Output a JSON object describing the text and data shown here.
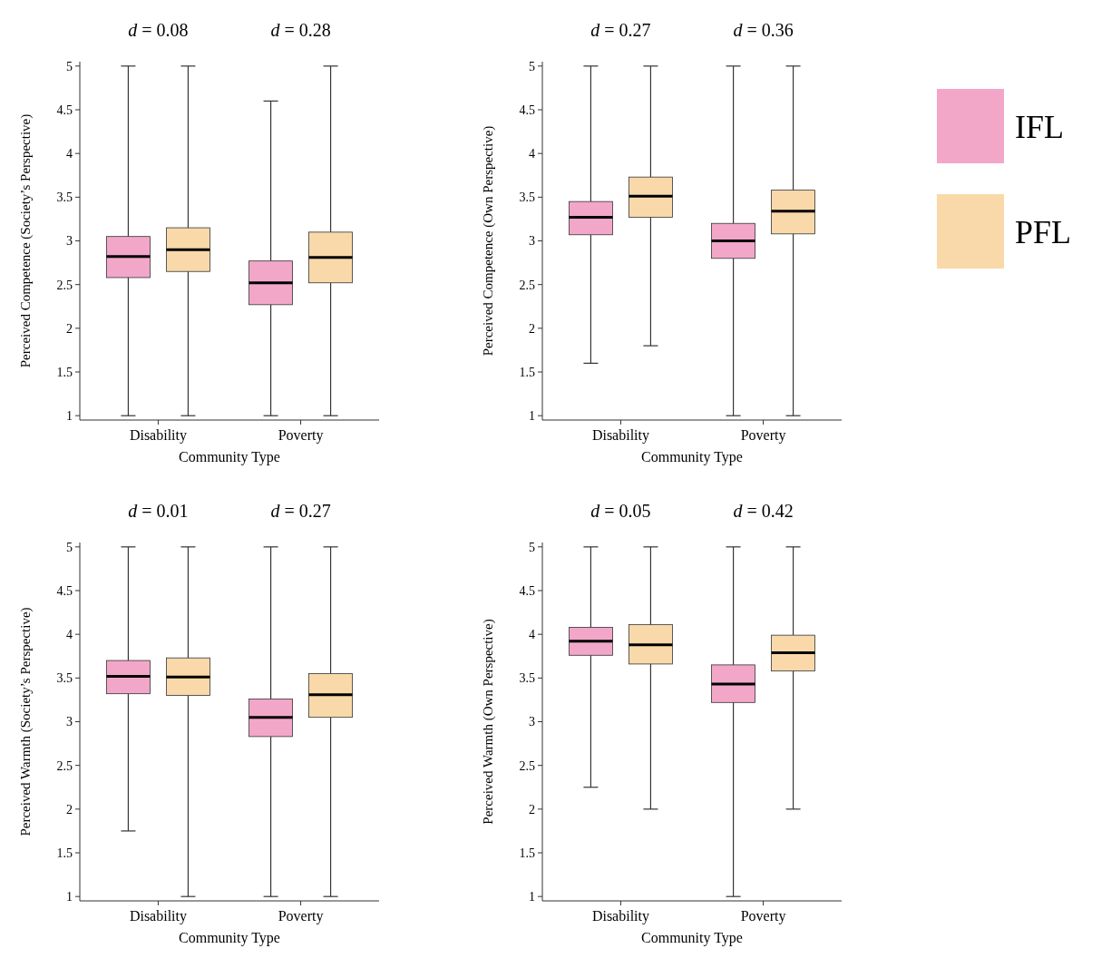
{
  "chart_data": [
    {
      "type": "box",
      "xlabel": "Community Type",
      "ylabel": "Perceived Competence (Society’s Perspective)",
      "categories": [
        "Disability",
        "Poverty"
      ],
      "ylim": [
        0.95,
        5.05
      ],
      "yticks": [
        1,
        1.5,
        2,
        2.5,
        3,
        3.5,
        4,
        4.5,
        5
      ],
      "annotations": [
        "d = 0.08",
        "d = 0.28"
      ],
      "legend": false,
      "series": [
        {
          "color": "#f2a7c9",
          "boxes": [
            {
              "low": 1,
              "q1": 2.58,
              "median": 2.82,
              "q3": 3.05,
              "high": 5
            },
            {
              "low": 1,
              "q1": 2.27,
              "median": 2.52,
              "q3": 2.77,
              "high": 4.6
            }
          ]
        },
        {
          "color": "#f9d9aa",
          "boxes": [
            {
              "low": 1,
              "q1": 2.65,
              "median": 2.9,
              "q3": 3.15,
              "high": 5
            },
            {
              "low": 1,
              "q1": 2.52,
              "median": 2.81,
              "q3": 3.1,
              "high": 5
            }
          ]
        }
      ]
    },
    {
      "type": "box",
      "xlabel": "Community Type",
      "ylabel": "Perceived Competence (Own Perspective)",
      "categories": [
        "Disability",
        "Poverty"
      ],
      "ylim": [
        0.95,
        5.05
      ],
      "yticks": [
        1,
        1.5,
        2,
        2.5,
        3,
        3.5,
        4,
        4.5,
        5
      ],
      "annotations": [
        "d = 0.27",
        "d = 0.36"
      ],
      "legend": "right",
      "series": [
        {
          "name": "IFL",
          "color": "#f2a7c9",
          "boxes": [
            {
              "low": 1.6,
              "q1": 3.07,
              "median": 3.27,
              "q3": 3.45,
              "high": 5
            },
            {
              "low": 1,
              "q1": 2.8,
              "median": 3.0,
              "q3": 3.2,
              "high": 5
            }
          ]
        },
        {
          "name": "PFL",
          "color": "#f9d9aa",
          "boxes": [
            {
              "low": 1.8,
              "q1": 3.27,
              "median": 3.51,
              "q3": 3.73,
              "high": 5
            },
            {
              "low": 1,
              "q1": 3.08,
              "median": 3.34,
              "q3": 3.58,
              "high": 5
            }
          ]
        }
      ]
    },
    {
      "type": "box",
      "xlabel": "Community Type",
      "ylabel": "Perceived Warmth (Society’s Perspective)",
      "categories": [
        "Disability",
        "Poverty"
      ],
      "ylim": [
        0.95,
        5.05
      ],
      "yticks": [
        1,
        1.5,
        2,
        2.5,
        3,
        3.5,
        4,
        4.5,
        5
      ],
      "annotations": [
        "d = 0.01",
        "d = 0.27"
      ],
      "legend": false,
      "series": [
        {
          "color": "#f2a7c9",
          "boxes": [
            {
              "low": 1.75,
              "q1": 3.32,
              "median": 3.52,
              "q3": 3.7,
              "high": 5
            },
            {
              "low": 1,
              "q1": 2.83,
              "median": 3.05,
              "q3": 3.26,
              "high": 5
            }
          ]
        },
        {
          "color": "#f9d9aa",
          "boxes": [
            {
              "low": 1,
              "q1": 3.3,
              "median": 3.51,
              "q3": 3.73,
              "high": 5
            },
            {
              "low": 1,
              "q1": 3.05,
              "median": 3.31,
              "q3": 3.55,
              "high": 5
            }
          ]
        }
      ]
    },
    {
      "type": "box",
      "xlabel": "Community Type",
      "ylabel": "Perceived Warmth (Own Perspective)",
      "categories": [
        "Disability",
        "Poverty"
      ],
      "ylim": [
        0.95,
        5.05
      ],
      "yticks": [
        1,
        1.5,
        2,
        2.5,
        3,
        3.5,
        4,
        4.5,
        5
      ],
      "annotations": [
        "d = 0.05",
        "d = 0.42"
      ],
      "legend": false,
      "series": [
        {
          "color": "#f2a7c9",
          "boxes": [
            {
              "low": 2.25,
              "q1": 3.76,
              "median": 3.92,
              "q3": 4.08,
              "high": 5
            },
            {
              "low": 1,
              "q1": 3.22,
              "median": 3.43,
              "q3": 3.65,
              "high": 5
            }
          ]
        },
        {
          "color": "#f9d9aa",
          "boxes": [
            {
              "low": 2,
              "q1": 3.66,
              "median": 3.88,
              "q3": 4.11,
              "high": 5
            },
            {
              "low": 2,
              "q1": 3.58,
              "median": 3.79,
              "q3": 3.99,
              "high": 5
            }
          ]
        }
      ]
    }
  ]
}
